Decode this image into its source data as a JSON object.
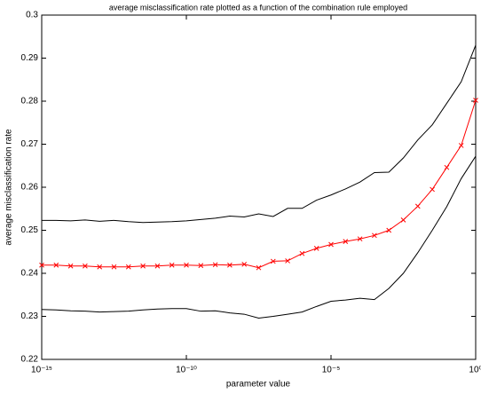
{
  "chart_data": {
    "type": "line",
    "title": "average misclassification rate plotted as a function of the combination rule employed",
    "x_label": "parameter value",
    "y_label": "average misclassification rate",
    "x_scale": "log",
    "xlim": [
      1e-15,
      1
    ],
    "ylim": [
      0.22,
      0.3
    ],
    "xticks": [
      {
        "value": 1e-15,
        "label": "10⁻¹⁵"
      },
      {
        "value": 1e-10,
        "label": "10⁻¹⁰"
      },
      {
        "value": 1e-05,
        "label": "10⁻⁵"
      },
      {
        "value": 1,
        "label": "10⁰"
      }
    ],
    "yticks": [
      0.22,
      0.23,
      0.24,
      0.25,
      0.26,
      0.27,
      0.28,
      0.29,
      0.3
    ],
    "x": [
      1e-15,
      3.16e-15,
      1e-14,
      3.16e-14,
      1e-13,
      3.16e-13,
      1e-12,
      3.16e-12,
      1e-11,
      3.16e-11,
      1e-10,
      3.16e-10,
      1e-09,
      3.16e-09,
      1e-08,
      3.16e-08,
      1e-07,
      3.16e-07,
      1e-06,
      3.16e-06,
      1e-05,
      3.16e-05,
      0.0001,
      0.000316,
      0.001,
      0.00316,
      0.01,
      0.0316,
      0.1,
      0.316,
      1
    ],
    "series": [
      {
        "color": "#000000",
        "marker": "none",
        "values": [
          0.2523,
          0.2523,
          0.2522,
          0.2524,
          0.2521,
          0.2523,
          0.252,
          0.2518,
          0.2519,
          0.252,
          0.2522,
          0.2525,
          0.2528,
          0.2533,
          0.2531,
          0.2538,
          0.2532,
          0.2551,
          0.2551,
          0.257,
          0.2582,
          0.2596,
          0.2612,
          0.2634,
          0.2635,
          0.2668,
          0.271,
          0.2745,
          0.2795,
          0.2845,
          0.293
        ]
      },
      {
        "color": "#ff0000",
        "marker": "x",
        "values": [
          0.2419,
          0.2419,
          0.2417,
          0.2417,
          0.2415,
          0.2415,
          0.2415,
          0.2417,
          0.2417,
          0.2419,
          0.2419,
          0.2418,
          0.242,
          0.2419,
          0.2421,
          0.2413,
          0.2428,
          0.2429,
          0.2446,
          0.2458,
          0.2467,
          0.2474,
          0.248,
          0.2488,
          0.25,
          0.2524,
          0.2556,
          0.2595,
          0.2646,
          0.2697,
          0.2802
        ]
      },
      {
        "color": "#000000",
        "marker": "none",
        "values": [
          0.2316,
          0.2315,
          0.2313,
          0.2312,
          0.231,
          0.2311,
          0.2312,
          0.2315,
          0.2317,
          0.2318,
          0.2318,
          0.2312,
          0.2313,
          0.2308,
          0.2305,
          0.2296,
          0.23,
          0.2305,
          0.231,
          0.2323,
          0.2335,
          0.2338,
          0.2342,
          0.2339,
          0.2365,
          0.24,
          0.2448,
          0.25,
          0.2555,
          0.262,
          0.2672
        ]
      }
    ]
  }
}
